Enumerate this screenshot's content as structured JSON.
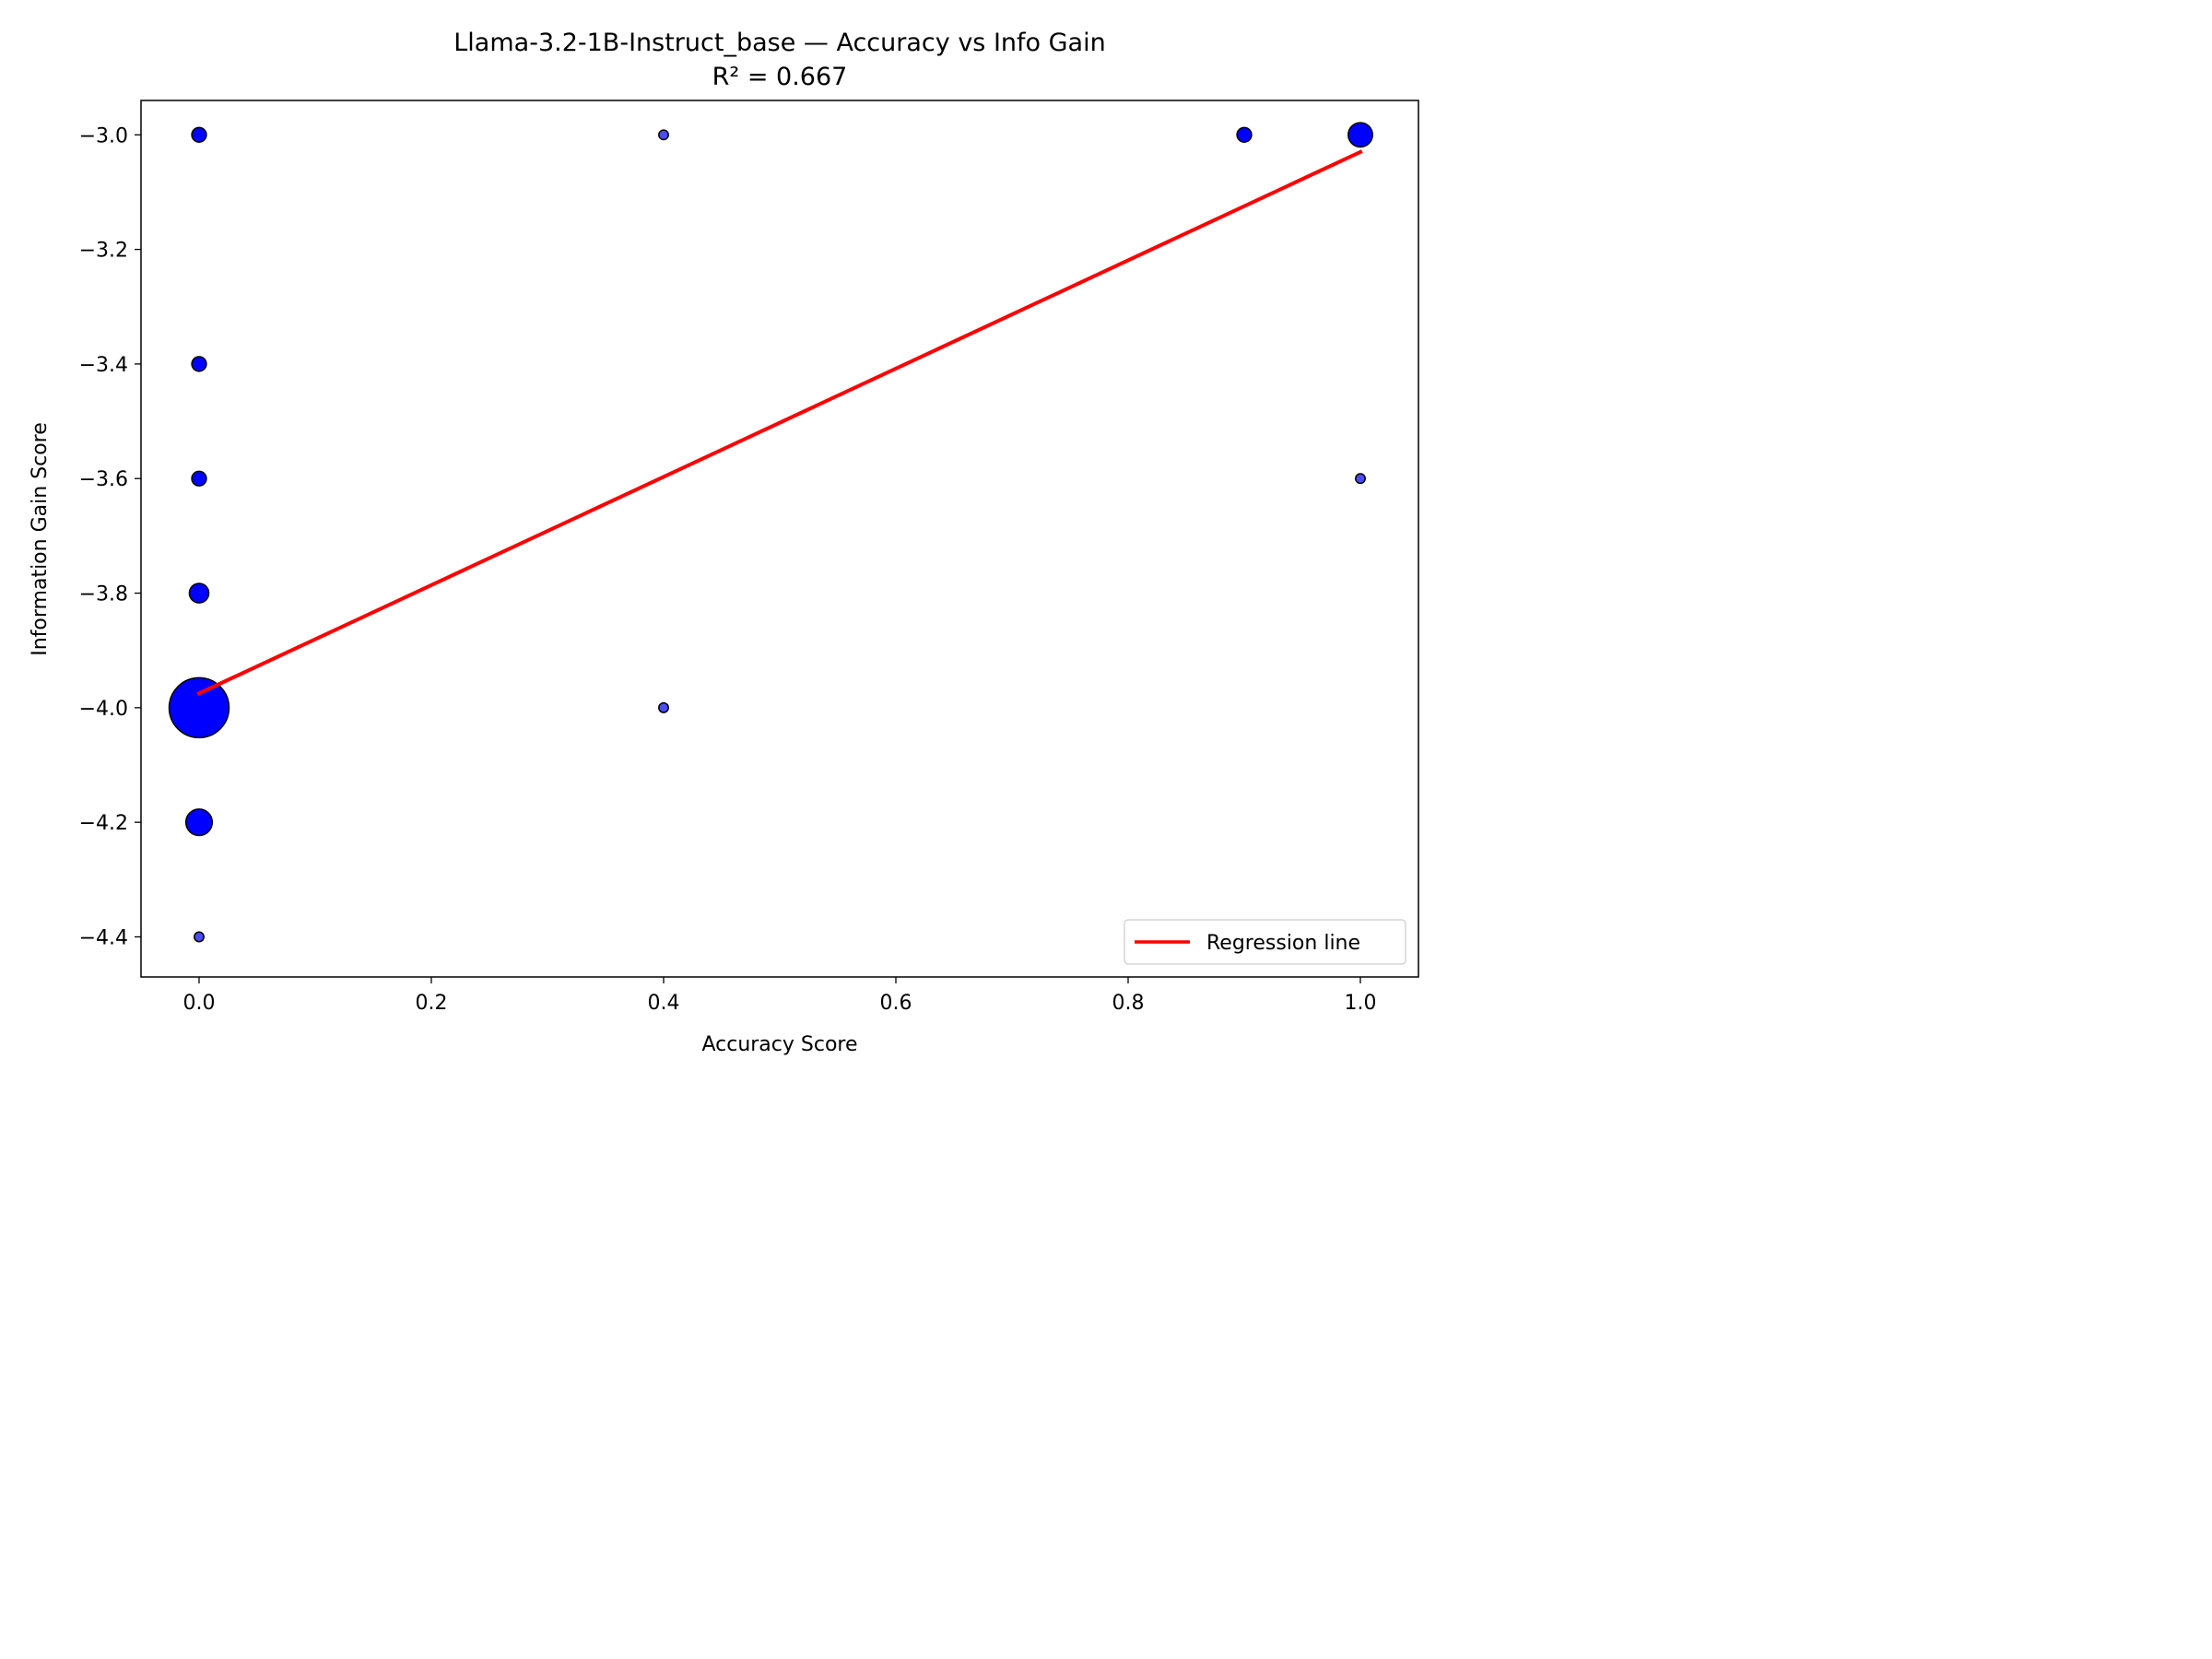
{
  "chart_data": {
    "type": "scatter",
    "title": "Llama-3.2-1B-Instruct_base — Accuracy vs Info Gain",
    "subtitle": "R² = 0.667",
    "xlabel": "Accuracy Score",
    "ylabel": "Information Gain Score",
    "xlim": [
      -0.05,
      1.05
    ],
    "ylim": [
      -4.47,
      -2.94
    ],
    "xticks": [
      0.0,
      0.2,
      0.4,
      0.6,
      0.8,
      1.0
    ],
    "xtick_labels": [
      "0.0",
      "0.2",
      "0.4",
      "0.6",
      "0.8",
      "1.0"
    ],
    "yticks": [
      -3.0,
      -3.2,
      -3.4,
      -3.6,
      -3.8,
      -4.0,
      -4.2,
      -4.4
    ],
    "ytick_labels": [
      "−3.0",
      "−3.2",
      "−3.4",
      "−3.6",
      "−3.8",
      "−4.0",
      "−4.2",
      "−4.4"
    ],
    "grid": false,
    "points": [
      {
        "x": 0.0,
        "y": -3.0,
        "count": 3
      },
      {
        "x": 0.0,
        "y": -3.4,
        "count": 3
      },
      {
        "x": 0.0,
        "y": -3.6,
        "count": 3
      },
      {
        "x": 0.0,
        "y": -3.8,
        "count": 6
      },
      {
        "x": 0.0,
        "y": -4.0,
        "count": 70
      },
      {
        "x": 0.0,
        "y": -4.2,
        "count": 12
      },
      {
        "x": 0.0,
        "y": -4.4,
        "count": 1
      },
      {
        "x": 0.4,
        "y": -3.0,
        "count": 1
      },
      {
        "x": 0.4,
        "y": -4.0,
        "count": 1
      },
      {
        "x": 0.9,
        "y": -3.0,
        "count": 3
      },
      {
        "x": 1.0,
        "y": -3.0,
        "count": 10
      },
      {
        "x": 1.0,
        "y": -3.6,
        "count": 1
      }
    ],
    "regression": {
      "name": "Regression line",
      "x": [
        0.0,
        1.0
      ],
      "y": [
        -3.975,
        -3.03
      ],
      "color": "#ff0000"
    },
    "point_color": "#0000ff",
    "point_edge_color": "#000000",
    "legend": {
      "placement": "lower-right",
      "entries": [
        "Regression line"
      ]
    }
  }
}
